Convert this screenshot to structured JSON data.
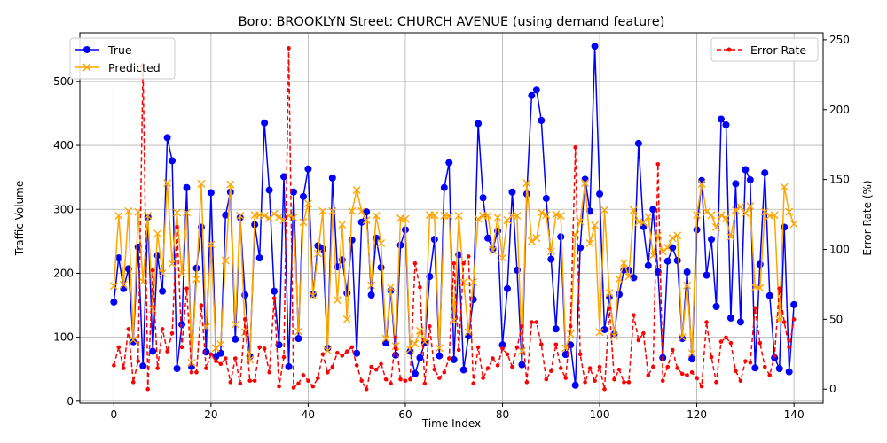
{
  "chart_data": {
    "type": "line",
    "title": "Boro: BROOKLYN Street: CHURCH AVENUE (using demand feature)",
    "xlabel": "Time Index",
    "ylabel": "Traffic Volume",
    "y2label": "Error Rate (%)",
    "xlim": [
      -7,
      146
    ],
    "ylim": [
      -3,
      576
    ],
    "y2lim": [
      -10,
      255
    ],
    "xticks": [
      0,
      20,
      40,
      60,
      80,
      100,
      120,
      140
    ],
    "yticks": [
      0,
      100,
      200,
      300,
      400,
      500
    ],
    "y2ticks": [
      0,
      50,
      100,
      150,
      200,
      250
    ],
    "grid": true,
    "legend_left": "top-left",
    "legend_right": "top-right",
    "series": [
      {
        "name": "True",
        "axis": "left",
        "color": "#0000ff",
        "marker": "circle",
        "values": [
          155,
          224,
          176,
          207,
          93,
          241,
          55,
          288,
          78,
          228,
          172,
          412,
          376,
          51,
          120,
          334,
          54,
          208,
          272,
          77,
          326,
          70,
          75,
          291,
          327,
          97,
          287,
          166,
          70,
          276,
          224,
          435,
          330,
          172,
          88,
          351,
          54,
          327,
          98,
          320,
          363,
          167,
          243,
          238,
          83,
          349,
          210,
          221,
          169,
          252,
          75,
          280,
          296,
          166,
          255,
          209,
          91,
          173,
          72,
          244,
          268,
          78,
          43,
          68,
          91,
          195,
          253,
          71,
          334,
          373,
          65,
          229,
          49,
          102,
          159,
          434,
          318,
          255,
          238,
          266,
          88,
          176,
          327,
          205,
          57,
          324,
          478,
          487,
          439,
          317,
          222,
          113,
          257,
          73,
          88,
          25,
          240,
          347,
          297,
          555,
          324,
          112,
          163,
          105,
          167,
          205,
          205,
          193,
          403,
          273,
          212,
          300,
          202,
          68,
          219,
          240,
          220,
          98,
          202,
          66,
          268,
          345,
          197,
          253,
          148,
          441,
          432,
          130,
          340,
          124,
          362,
          346,
          52,
          214,
          357,
          165,
          68,
          51,
          272,
          46,
          151
        ]
      },
      {
        "name": "Predicted",
        "axis": "left",
        "color": "#ffa500",
        "marker": "x",
        "values": [
          180,
          290,
          182,
          297,
          96,
          296,
          187,
          290,
          144,
          262,
          200,
          341,
          215,
          295,
          200,
          295,
          60,
          191,
          340,
          116,
          245,
          83,
          89,
          220,
          339,
          120,
          290,
          108,
          65,
          291,
          291,
          290,
          286,
          293,
          288,
          283,
          290,
          287,
          109,
          280,
          309,
          165,
          231,
          297,
          79,
          297,
          158,
          276,
          128,
          297,
          330,
          297,
          283,
          181,
          290,
          247,
          98,
          178,
          86,
          286,
          285,
          81,
          90,
          110,
          93,
          291,
          291,
          83,
          290,
          290,
          126,
          290,
          186,
          108,
          186,
          285,
          290,
          290,
          236,
          287,
          224,
          283,
          290,
          290,
          78,
          341,
          250,
          255,
          295,
          291,
          234,
          292,
          290,
          83,
          105,
          260,
          281,
          341,
          247,
          275,
          108,
          299,
          169,
          102,
          191,
          216,
          195,
          299,
          280,
          279,
          288,
          228,
          259,
          234,
          240,
          255,
          259,
          100,
          181,
          75,
          291,
          340,
          296,
          291,
          272,
          291,
          286,
          257,
          299,
          304,
          294,
          305,
          178,
          177,
          296,
          290,
          291,
          127,
          335,
          296,
          277
        ]
      },
      {
        "name": "Error Rate",
        "axis": "right",
        "color": "#ff0000",
        "marker": "dot",
        "dashed": true,
        "values": [
          17,
          30,
          15,
          43,
          5,
          20,
          232,
          0,
          85,
          15,
          43,
          27,
          40,
          116,
          30,
          72,
          12,
          12,
          60,
          15,
          25,
          20,
          18,
          22,
          5,
          22,
          4,
          50,
          6,
          6,
          30,
          29,
          12,
          65,
          2,
          23,
          244,
          1,
          4,
          10,
          6,
          2,
          8,
          25,
          12,
          16,
          26,
          24,
          27,
          30,
          17,
          6,
          0,
          16,
          14,
          18,
          7,
          4,
          37,
          7,
          6,
          7,
          90,
          73,
          4,
          45,
          14,
          8,
          12,
          22,
          90,
          28,
          90,
          95,
          4,
          30,
          8,
          15,
          22,
          17,
          29,
          25,
          16,
          30,
          45,
          5,
          48,
          48,
          32,
          7,
          13,
          32,
          15,
          8,
          45,
          173,
          25,
          5,
          15,
          6,
          16,
          0,
          58,
          7,
          14,
          5,
          5,
          53,
          35,
          40,
          10,
          16,
          161,
          6,
          16,
          28,
          15,
          11,
          10,
          12,
          8,
          2,
          48,
          23,
          5,
          34,
          37,
          33,
          13,
          6,
          20,
          19,
          58,
          33,
          16,
          10,
          24,
          72,
          48,
          30,
          50
        ]
      }
    ]
  }
}
